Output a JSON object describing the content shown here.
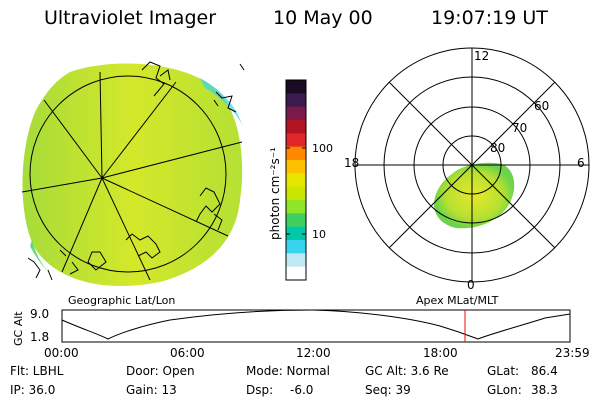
{
  "header": {
    "title": "Ultraviolet Imager",
    "date": "10 May 00",
    "time": "19:07:19 UT"
  },
  "colorbar": {
    "unit_label": "photon cm⁻²s⁻¹",
    "ticks": [
      "100",
      "10"
    ],
    "colors_top_to_bottom": [
      "#1a0a24",
      "#3b1b4f",
      "#7a1a4a",
      "#b31424",
      "#e0282a",
      "#ff8800",
      "#ffc000",
      "#e6e600",
      "#c8e600",
      "#8ee628",
      "#40d060",
      "#00c8a8",
      "#38d4ee",
      "#c0e8f4",
      "#ffffff"
    ]
  },
  "geo_panel": {
    "label": "Geographic Lat/Lon",
    "fill_color": "#d0e82c"
  },
  "polar_panel": {
    "label": "Apex MLat/MLT",
    "mlt_labels": {
      "top": "12",
      "left": "18",
      "right": "6",
      "bottom": "0"
    },
    "lat_labels": [
      "60",
      "70",
      "80"
    ],
    "fill_color": "#c8e830"
  },
  "alt_plot": {
    "ylabel": "GC Alt",
    "ymax": "9.0",
    "ymin": "1.8",
    "time_ticks": [
      "00:00",
      "06:00",
      "12:00",
      "18:00",
      "23:59"
    ],
    "marker_time": "19:07",
    "marker_color": "#e01010"
  },
  "info": {
    "flt": "Flt: LBHL",
    "door": "Door: Open",
    "mode": "Mode: Normal",
    "gc_alt": "GC Alt: 3.6 Re",
    "glat": "GLat:",
    "glat_val": "86.4",
    "ip": "IP: 36.0",
    "gain": "Gain: 13",
    "dsp": "Dsp:",
    "dsp_val": "-6.0",
    "seq": "Seq: 39",
    "glon": "GLon:",
    "glon_val": "38.3"
  }
}
